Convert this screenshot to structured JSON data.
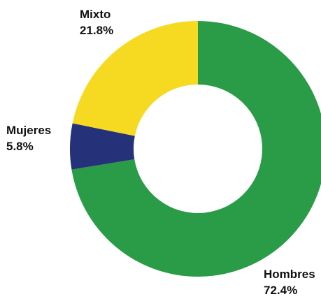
{
  "chart_data": {
    "type": "pie",
    "variant": "donut",
    "title": "",
    "legend": "none",
    "slices": [
      {
        "label": "Hombres",
        "value": 72.4,
        "value_label": "72.4%",
        "color": "#2a9b46"
      },
      {
        "label": "Mujeres",
        "value": 5.8,
        "value_label": "5.8%",
        "color": "#25327a"
      },
      {
        "label": "Mixto",
        "value": 21.8,
        "value_label": "21.8%",
        "color": "#f6da21"
      }
    ]
  }
}
